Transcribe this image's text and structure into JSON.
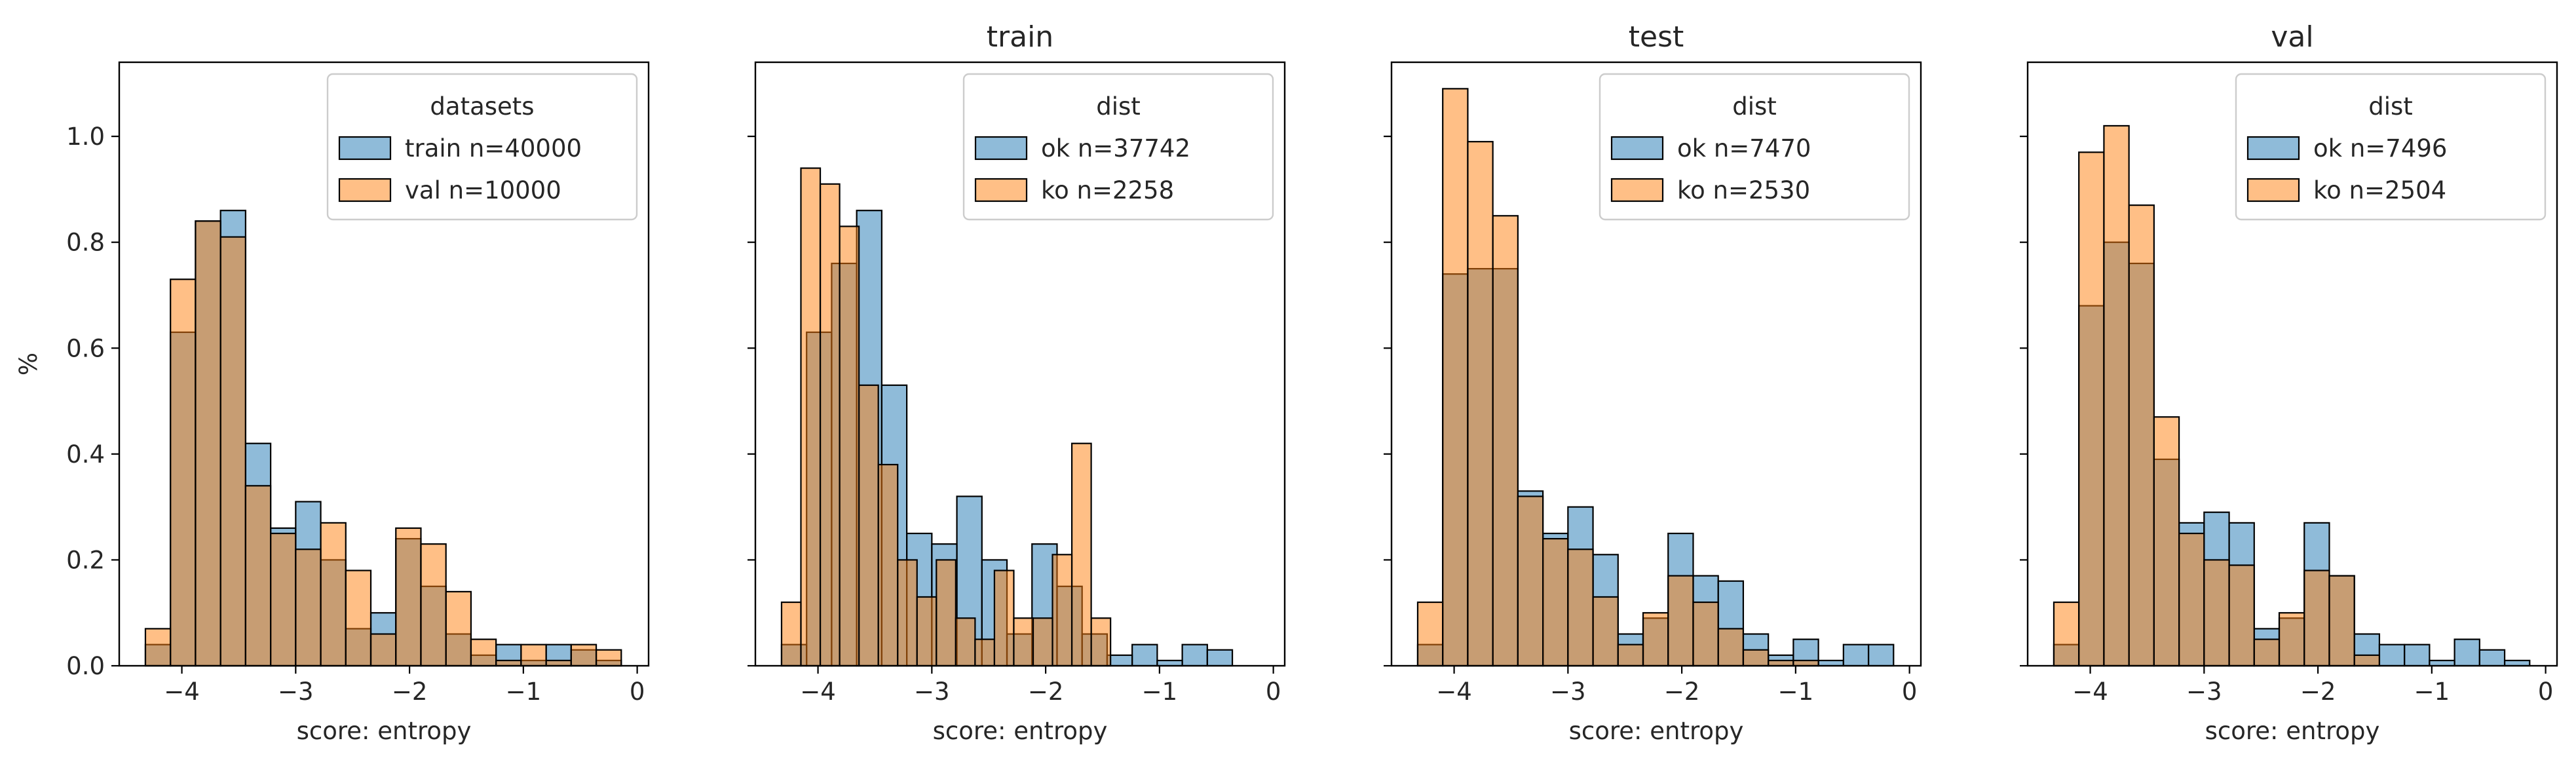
{
  "figure": {
    "colors": {
      "blue": "#1f77b4",
      "orange": "#ff7f0e"
    },
    "bar_alpha": 0.5,
    "ylabel": "%",
    "yticks": [
      "0.0",
      "0.2",
      "0.4",
      "0.6",
      "0.8",
      "1.0"
    ],
    "xticks": [
      "−4",
      "−3",
      "−2",
      "−1",
      "0"
    ]
  },
  "chart_data": [
    {
      "type": "bar",
      "title": "",
      "xlabel": "score: entropy",
      "ylabel": "%",
      "xlim": [
        -4.55,
        0.1
      ],
      "ylim": [
        0,
        1.14
      ],
      "legend": {
        "title": "datasets",
        "placement": "top-right"
      },
      "bin_edges": [
        -4.32,
        -4.1,
        -3.88,
        -3.66,
        -3.44,
        -3.22,
        -3.0,
        -2.78,
        -2.56,
        -2.34,
        -2.12,
        -1.9,
        -1.68,
        -1.46,
        -1.24,
        -1.02,
        -0.8,
        -0.58,
        -0.36,
        -0.14
      ],
      "series": [
        {
          "name": "train n=40000",
          "color": "#1f77b4",
          "values": [
            0.04,
            0.63,
            0.84,
            0.86,
            0.42,
            0.26,
            0.31,
            0.2,
            0.07,
            0.1,
            0.24,
            0.15,
            0.06,
            0.02,
            0.04,
            0.01,
            0.04,
            0.03,
            0.01
          ]
        },
        {
          "name": "val n=10000",
          "color": "#ff7f0e",
          "values": [
            0.07,
            0.73,
            0.84,
            0.81,
            0.34,
            0.25,
            0.22,
            0.27,
            0.18,
            0.06,
            0.26,
            0.23,
            0.14,
            0.05,
            0.01,
            0.04,
            0.01,
            0.04,
            0.03
          ]
        }
      ]
    },
    {
      "type": "bar",
      "title": "train",
      "xlabel": "score: entropy",
      "xlim": [
        -4.55,
        0.1
      ],
      "ylim": [
        0,
        1.14
      ],
      "legend": {
        "title": "dist",
        "placement": "top-right"
      },
      "bin_edges": [
        -4.32,
        -4.1,
        -3.88,
        -3.66,
        -3.44,
        -3.22,
        -3.0,
        -2.78,
        -2.56,
        -2.34,
        -2.12,
        -1.9,
        -1.68,
        -1.46,
        -1.24,
        -1.02,
        -0.8,
        -0.58,
        -0.36,
        -0.14
      ],
      "bin_edges_alt": [
        -4.32,
        -4.15,
        -3.98,
        -3.81,
        -3.64,
        -3.47,
        -3.3,
        -3.13,
        -2.96,
        -2.79,
        -2.62,
        -2.45,
        -2.28,
        -2.11,
        -1.94,
        -1.77,
        -1.6,
        -1.43
      ],
      "series": [
        {
          "name": "ok n=37742",
          "color": "#1f77b4",
          "edges_key": "bin_edges",
          "values": [
            0.04,
            0.63,
            0.76,
            0.86,
            0.53,
            0.25,
            0.23,
            0.32,
            0.2,
            0.06,
            0.23,
            0.15,
            0.06,
            0.02,
            0.04,
            0.01,
            0.04,
            0.03,
            0.0
          ]
        },
        {
          "name": "ko n=2258",
          "color": "#ff7f0e",
          "edges_key": "bin_edges_alt",
          "values": [
            0.12,
            0.94,
            0.91,
            0.83,
            0.53,
            0.38,
            0.2,
            0.13,
            0.2,
            0.09,
            0.05,
            0.18,
            0.09,
            0.09,
            0.21,
            0.42,
            0.09
          ]
        }
      ]
    },
    {
      "type": "bar",
      "title": "test",
      "xlabel": "score: entropy",
      "xlim": [
        -4.55,
        0.1
      ],
      "ylim": [
        0,
        1.14
      ],
      "legend": {
        "title": "dist",
        "placement": "top-right"
      },
      "bin_edges": [
        -4.32,
        -4.1,
        -3.88,
        -3.66,
        -3.44,
        -3.22,
        -3.0,
        -2.78,
        -2.56,
        -2.34,
        -2.12,
        -1.9,
        -1.68,
        -1.46,
        -1.24,
        -1.02,
        -0.8,
        -0.58,
        -0.36,
        -0.14
      ],
      "series": [
        {
          "name": "ok n=7470",
          "color": "#1f77b4",
          "values": [
            0.04,
            0.74,
            0.75,
            0.75,
            0.33,
            0.25,
            0.3,
            0.21,
            0.06,
            0.09,
            0.25,
            0.17,
            0.16,
            0.06,
            0.02,
            0.05,
            0.01,
            0.04,
            0.04
          ]
        },
        {
          "name": "ko n=2530",
          "color": "#ff7f0e",
          "values": [
            0.12,
            1.09,
            0.99,
            0.85,
            0.32,
            0.24,
            0.22,
            0.13,
            0.04,
            0.1,
            0.17,
            0.12,
            0.07,
            0.03,
            0.01,
            0.01,
            0.0,
            0.0,
            0.0
          ]
        }
      ]
    },
    {
      "type": "bar",
      "title": "val",
      "xlabel": "score: entropy",
      "xlim": [
        -4.55,
        0.1
      ],
      "ylim": [
        0,
        1.14
      ],
      "legend": {
        "title": "dist",
        "placement": "top-right"
      },
      "bin_edges": [
        -4.32,
        -4.1,
        -3.88,
        -3.66,
        -3.44,
        -3.22,
        -3.0,
        -2.78,
        -2.56,
        -2.34,
        -2.12,
        -1.9,
        -1.68,
        -1.46,
        -1.24,
        -1.02,
        -0.8,
        -0.58,
        -0.36,
        -0.14
      ],
      "series": [
        {
          "name": "ok n=7496",
          "color": "#1f77b4",
          "values": [
            0.04,
            0.68,
            0.8,
            0.76,
            0.39,
            0.27,
            0.29,
            0.27,
            0.07,
            0.09,
            0.27,
            0.17,
            0.06,
            0.04,
            0.04,
            0.01,
            0.05,
            0.03,
            0.01
          ]
        },
        {
          "name": "ko n=2504",
          "color": "#ff7f0e",
          "values": [
            0.12,
            0.97,
            1.02,
            0.87,
            0.47,
            0.25,
            0.2,
            0.19,
            0.05,
            0.1,
            0.18,
            0.17,
            0.02,
            0.0,
            0.0,
            0.0,
            0.0,
            0.0,
            0.0
          ]
        }
      ]
    }
  ]
}
